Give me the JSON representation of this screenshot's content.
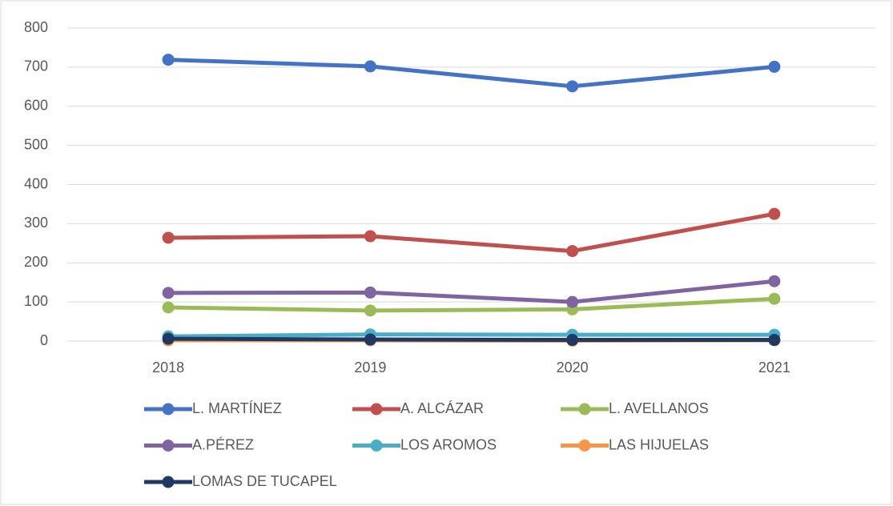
{
  "chart_data": {
    "type": "line",
    "categories": [
      "2018",
      "2019",
      "2020",
      "2021"
    ],
    "series": [
      {
        "name": "L. MARTÍNEZ",
        "color": "#4472c4",
        "values": [
          719,
          702,
          651,
          701
        ]
      },
      {
        "name": "A. ALCÁZAR",
        "color": "#c0504d",
        "values": [
          264,
          268,
          230,
          325
        ]
      },
      {
        "name": "L. AVELLANOS",
        "color": "#9bbb59",
        "values": [
          86,
          78,
          81,
          108
        ]
      },
      {
        "name": "A.PÉREZ",
        "color": "#8064a2",
        "values": [
          123,
          124,
          100,
          153
        ]
      },
      {
        "name": "LOS AROMOS",
        "color": "#4bacc6",
        "values": [
          12,
          17,
          16,
          16
        ]
      },
      {
        "name": "LAS HIJUELAS",
        "color": "#f79646",
        "values": [
          2,
          2,
          1,
          2
        ]
      },
      {
        "name": "LOMAS DE TUCAPEL",
        "color": "#203864",
        "values": [
          6,
          4,
          3,
          3
        ]
      }
    ],
    "ylim": [
      0,
      800
    ],
    "yticks": [
      0,
      100,
      200,
      300,
      400,
      500,
      600,
      700,
      800
    ],
    "grid": true
  }
}
